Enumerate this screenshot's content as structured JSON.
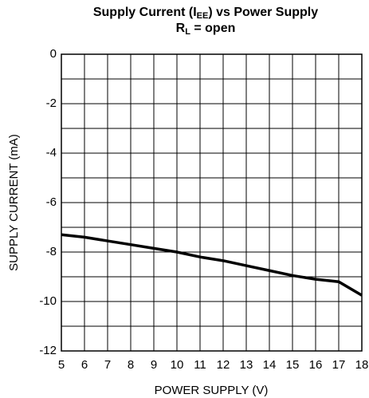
{
  "chart_data": {
    "type": "line",
    "title": [
      "Supply Current (I",
      "EE",
      ") vs Power Supply"
    ],
    "subtitle": [
      "R",
      "L",
      " = open"
    ],
    "x_label": "POWER SUPPLY (V)",
    "y_label": "SUPPLY CURRENT (mA)",
    "x": [
      5,
      6,
      7,
      8,
      9,
      10,
      11,
      12,
      13,
      14,
      15,
      16,
      17,
      18
    ],
    "series": [
      {
        "color": "#000000",
        "values": [
          -7.3,
          -7.4,
          -7.55,
          -7.7,
          -7.85,
          -8.0,
          -8.2,
          -8.35,
          -8.55,
          -8.75,
          -8.95,
          -9.1,
          -9.2,
          -9.75
        ]
      }
    ],
    "xlim": [
      5,
      18
    ],
    "xticks": [
      5,
      6,
      7,
      8,
      9,
      10,
      11,
      12,
      13,
      14,
      15,
      16,
      17,
      18
    ],
    "ylim": [
      -12,
      0
    ],
    "yticks": [
      -12,
      -10,
      -8,
      -6,
      -4,
      -2,
      0
    ],
    "yminor_ticks": [
      -11,
      -9,
      -7,
      -5,
      -3,
      -1
    ],
    "grid": true
  }
}
